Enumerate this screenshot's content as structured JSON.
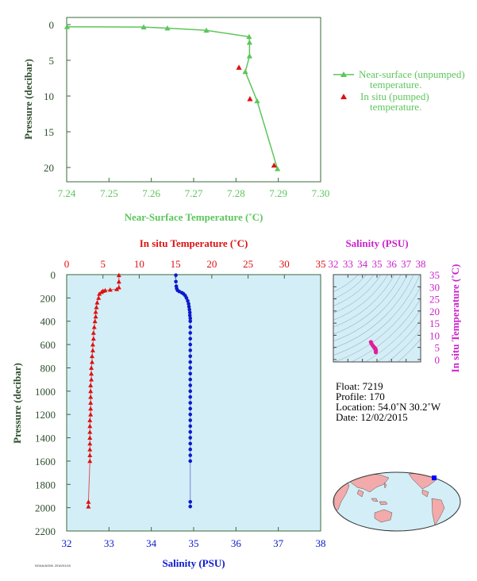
{
  "chart_data": [
    {
      "type": "line",
      "xlabel": "Near-Surface Temperature (˚C)",
      "ylabel": "Pressure (decibar)",
      "xlim": [
        7.24,
        7.3
      ],
      "ylim": [
        22,
        -1
      ],
      "x_ticks": [
        "7.24",
        "7.25",
        "7.26",
        "7.27",
        "7.28",
        "7.29",
        "7.30"
      ],
      "y_ticks": [
        "0",
        "5",
        "10",
        "15",
        "20"
      ],
      "legend_position": "right",
      "series": [
        {
          "name": "Near-surface (unpumped) temperature.",
          "name_lines": [
            "Near-surface (unpumped)",
            "temperature."
          ],
          "color": "#5cc65c",
          "marker": "triangle",
          "points": [
            [
              7.2401,
              0.3
            ],
            [
              7.2582,
              0.35
            ],
            [
              7.2638,
              0.5
            ],
            [
              7.273,
              0.8
            ],
            [
              7.2831,
              1.7
            ],
            [
              7.2832,
              2.5
            ],
            [
              7.2832,
              4.4
            ],
            [
              7.2822,
              6.6
            ],
            [
              7.285,
              10.7
            ],
            [
              7.2898,
              20.2
            ]
          ]
        },
        {
          "name": "In situ (pumped) temperature.",
          "name_lines": [
            "In situ (pumped)",
            "temperature."
          ],
          "color": "#dd1111",
          "marker": "triangle",
          "points": [
            [
              7.2807,
              6.0
            ],
            [
              7.2833,
              10.4
            ],
            [
              7.289,
              19.7
            ]
          ]
        }
      ]
    },
    {
      "type": "scatter",
      "x_bottom_label": "Salinity (PSU)",
      "x_top_label": "In situ Temperature (˚C)",
      "ylabel": "Pressure (decibar)",
      "salinity_lim": [
        32,
        38
      ],
      "temperature_lim": [
        0,
        35
      ],
      "ylim": [
        2200,
        0
      ],
      "salinity_ticks": [
        "32",
        "33",
        "34",
        "35",
        "36",
        "37",
        "38"
      ],
      "temperature_ticks": [
        "0",
        "5",
        "10",
        "15",
        "20",
        "25",
        "30",
        "35"
      ],
      "y_ticks": [
        "0",
        "200",
        "400",
        "600",
        "800",
        "1000",
        "1200",
        "1400",
        "1600",
        "1800",
        "2000",
        "2200"
      ],
      "background": "#d4eef7",
      "temperature": {
        "color": "#dd1111",
        "marker": "triangle",
        "points": [
          [
            7.2,
            5
          ],
          [
            7.2,
            60
          ],
          [
            7.2,
            110
          ],
          [
            6.9,
            125
          ],
          [
            6.0,
            130
          ],
          [
            5.3,
            135
          ],
          [
            5.0,
            140
          ],
          [
            4.8,
            150
          ],
          [
            4.5,
            165
          ],
          [
            4.4,
            200
          ],
          [
            4.2,
            240
          ],
          [
            4.1,
            280
          ],
          [
            4.0,
            320
          ],
          [
            4.0,
            360
          ],
          [
            3.9,
            400
          ],
          [
            3.8,
            450
          ],
          [
            3.7,
            500
          ],
          [
            3.7,
            550
          ],
          [
            3.6,
            600
          ],
          [
            3.6,
            650
          ],
          [
            3.5,
            700
          ],
          [
            3.5,
            750
          ],
          [
            3.4,
            800
          ],
          [
            3.4,
            850
          ],
          [
            3.4,
            900
          ],
          [
            3.3,
            950
          ],
          [
            3.3,
            1000
          ],
          [
            3.3,
            1050
          ],
          [
            3.3,
            1100
          ],
          [
            3.3,
            1150
          ],
          [
            3.3,
            1200
          ],
          [
            3.2,
            1250
          ],
          [
            3.2,
            1300
          ],
          [
            3.2,
            1350
          ],
          [
            3.2,
            1400
          ],
          [
            3.2,
            1450
          ],
          [
            3.2,
            1500
          ],
          [
            3.2,
            1550
          ],
          [
            3.2,
            1600
          ],
          [
            3.0,
            1950
          ],
          [
            3.0,
            1990
          ]
        ]
      },
      "salinity": {
        "color": "#0a1acc",
        "marker": "circle",
        "points": [
          [
            34.58,
            5
          ],
          [
            34.58,
            60
          ],
          [
            34.59,
            100
          ],
          [
            34.6,
            120
          ],
          [
            34.62,
            135
          ],
          [
            34.66,
            145
          ],
          [
            34.72,
            155
          ],
          [
            34.76,
            165
          ],
          [
            34.8,
            180
          ],
          [
            34.83,
            200
          ],
          [
            34.86,
            225
          ],
          [
            34.88,
            250
          ],
          [
            34.89,
            275
          ],
          [
            34.9,
            300
          ],
          [
            34.91,
            325
          ],
          [
            34.91,
            350
          ],
          [
            34.92,
            375
          ],
          [
            34.92,
            400
          ],
          [
            34.92,
            450
          ],
          [
            34.92,
            500
          ],
          [
            34.92,
            550
          ],
          [
            34.92,
            600
          ],
          [
            34.92,
            650
          ],
          [
            34.92,
            700
          ],
          [
            34.92,
            750
          ],
          [
            34.92,
            800
          ],
          [
            34.92,
            850
          ],
          [
            34.92,
            900
          ],
          [
            34.92,
            950
          ],
          [
            34.92,
            1000
          ],
          [
            34.92,
            1050
          ],
          [
            34.92,
            1100
          ],
          [
            34.92,
            1150
          ],
          [
            34.92,
            1200
          ],
          [
            34.92,
            1250
          ],
          [
            34.92,
            1300
          ],
          [
            34.92,
            1350
          ],
          [
            34.92,
            1400
          ],
          [
            34.92,
            1450
          ],
          [
            34.92,
            1500
          ],
          [
            34.92,
            1550
          ],
          [
            34.92,
            1600
          ],
          [
            34.92,
            1950
          ],
          [
            34.92,
            1990
          ]
        ]
      }
    },
    {
      "type": "scatter",
      "xlabel": "Salinity (PSU)",
      "ylabel": "In situ Temperature (˚C)",
      "xlim": [
        32,
        38
      ],
      "ylim": [
        -1,
        35
      ],
      "x_ticks": [
        "32",
        "33",
        "34",
        "35",
        "36",
        "37",
        "38"
      ],
      "y_ticks": [
        "0",
        "5",
        "10",
        "15",
        "20",
        "25",
        "30",
        "35"
      ],
      "color": "#e0209a",
      "marker": "circle",
      "points": [
        [
          34.58,
          7.2
        ],
        [
          34.62,
          6.6
        ],
        [
          34.7,
          5.8
        ],
        [
          34.78,
          5.2
        ],
        [
          34.84,
          4.8
        ],
        [
          34.88,
          4.5
        ],
        [
          34.9,
          4.2
        ],
        [
          34.91,
          4.0
        ],
        [
          34.92,
          3.8
        ],
        [
          34.92,
          3.6
        ],
        [
          34.92,
          3.4
        ],
        [
          34.92,
          3.3
        ],
        [
          34.92,
          3.2
        ],
        [
          34.92,
          3.0
        ]
      ]
    }
  ],
  "float_info": {
    "float": "Float:  7219",
    "profile": "Profile:  170",
    "location": "Location:  54.0˚N  30.2˚W",
    "date": "Date:  12/02/2015"
  },
  "map": {
    "float_lon": -30.2,
    "float_lat": 54.0,
    "marker_color": "#0000ff",
    "ocean_color": "#d4eef7",
    "land_color": "#f2aaaa"
  },
  "credit": "NOAA/AOML 2016/01/18"
}
